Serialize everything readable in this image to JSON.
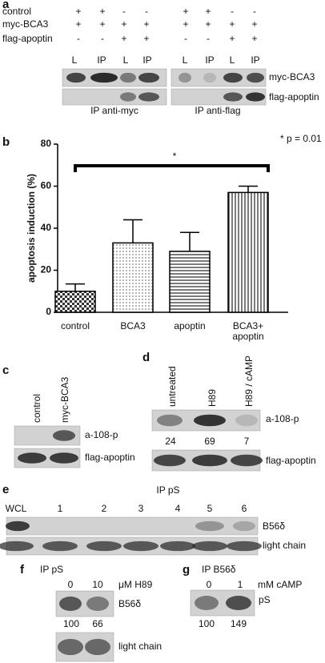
{
  "panel_a": {
    "label": "a",
    "rows": [
      {
        "name": "control",
        "signs": [
          "+",
          "+",
          "-",
          "-",
          "+",
          "+",
          "-",
          "-"
        ]
      },
      {
        "name": "myc-BCA3",
        "signs": [
          "+",
          "+",
          "+",
          "+",
          "+",
          "+",
          "+",
          "+"
        ]
      },
      {
        "name": "flag-apoptin",
        "signs": [
          "-",
          "-",
          "+",
          "+",
          "-",
          "-",
          "+",
          "+"
        ]
      }
    ],
    "lanes": [
      "L",
      "IP",
      "L",
      "IP",
      "L",
      "IP",
      "L",
      "IP"
    ],
    "blot_labels": [
      "myc-BCA3",
      "flag-apoptin"
    ],
    "captions": [
      "IP  anti-myc",
      "IP  anti-flag"
    ]
  },
  "chart_data": {
    "type": "bar",
    "panel_label": "b",
    "y_label": "apoptosis induction (%)",
    "categories": [
      "control",
      "BCA3",
      "apoptin",
      "BCA3+ apoptin"
    ],
    "values": [
      10,
      33,
      29,
      57
    ],
    "errors": [
      3.5,
      11,
      9,
      3
    ],
    "patterns": [
      "checker",
      "dots",
      "hlines",
      "vlines"
    ],
    "ylim": [
      0,
      80
    ],
    "yticks": [
      0,
      20,
      40,
      60,
      80
    ],
    "significance": "*",
    "p_value": "* p = 0.01"
  },
  "panel_c": {
    "label": "c",
    "lanes": [
      "control",
      "myc-BCA3"
    ],
    "blot_labels": [
      "a-108-p",
      "flag-apoptin"
    ]
  },
  "panel_d": {
    "label": "d",
    "lanes": [
      "untreated",
      "H89",
      "H89 / cAMP"
    ],
    "quantification": [
      24,
      69,
      7
    ],
    "blot_labels": [
      "a-108-p",
      "flag-apoptin"
    ]
  },
  "panel_e": {
    "label": "e",
    "title": "IP pS",
    "lanes": [
      "WCL",
      "1",
      "2",
      "3",
      "4",
      "5",
      "6"
    ],
    "blot_labels": [
      "B56δ",
      "light chain"
    ]
  },
  "panel_f": {
    "label": "f",
    "title": "IP pS",
    "doses": [
      0,
      10
    ],
    "unit": "μM H89",
    "quantification": [
      100,
      66
    ],
    "blot_labels": [
      "B56δ",
      "light chain"
    ]
  },
  "panel_g": {
    "label": "g",
    "title": "IP B56δ",
    "doses": [
      0,
      1
    ],
    "unit": "mM cAMP",
    "quantification": [
      100,
      149
    ],
    "blot_labels": [
      "pS"
    ]
  }
}
